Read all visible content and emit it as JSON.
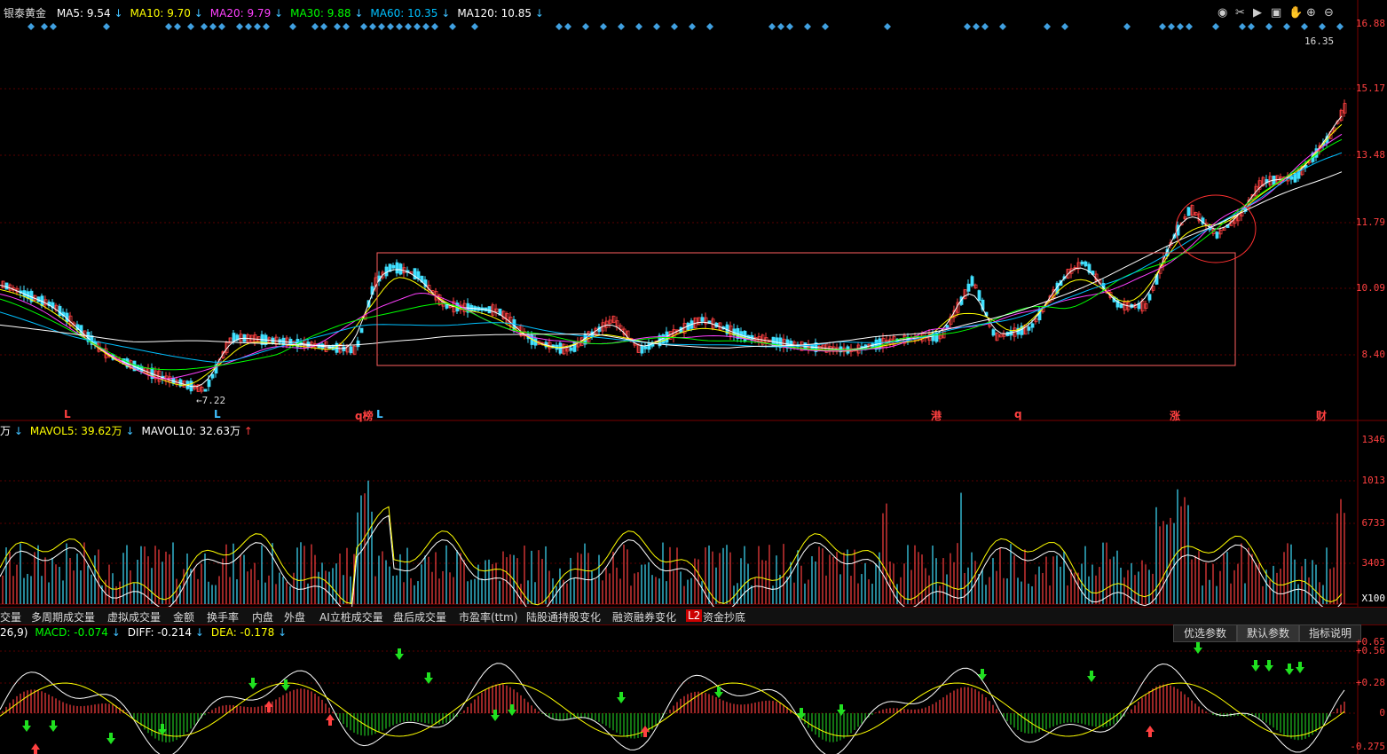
{
  "stock_name": "银泰黄金",
  "ma_legend": [
    {
      "label": "MA5: 9.54",
      "color": "#ffffff",
      "arrow": "down"
    },
    {
      "label": "MA10: 9.70",
      "color": "#ffff00",
      "arrow": "down"
    },
    {
      "label": "MA20: 9.79",
      "color": "#ff40ff",
      "arrow": "down"
    },
    {
      "label": "MA30: 9.88",
      "color": "#00ff00",
      "arrow": "down"
    },
    {
      "label": "MA60: 10.35",
      "color": "#00c0ff",
      "arrow": "down"
    },
    {
      "label": "MA120: 10.85",
      "color": "#ffffff",
      "arrow": "down"
    }
  ],
  "price_axis": [
    "16.88",
    "15.17",
    "13.48",
    "11.79",
    "10.09",
    "8.40"
  ],
  "price_high_label": "16.35",
  "price_low_label": "7.22",
  "event_markers": [
    {
      "text": "L",
      "color": "#ff4040"
    },
    {
      "text": "L",
      "color": "#40c0ff"
    },
    {
      "text": "q榜",
      "color": "#ff4040"
    },
    {
      "text": "L",
      "color": "#40c0ff"
    },
    {
      "text": "港",
      "color": "#ff4040"
    },
    {
      "text": "q",
      "color": "#ff4040"
    },
    {
      "text": "涨",
      "color": "#ff4040"
    },
    {
      "text": "财",
      "color": "#ff4040"
    }
  ],
  "volume_legend": [
    {
      "label": "万",
      "color": "#ffffff",
      "arrow": "down"
    },
    {
      "label": "MAVOL5: 39.62万",
      "color": "#ffff00",
      "arrow": "down"
    },
    {
      "label": "MAVOL10: 32.63万",
      "color": "#ffffff",
      "arrow": "up"
    }
  ],
  "volume_axis": [
    "1346",
    "1013",
    "6733",
    "3403",
    "X100"
  ],
  "indicator_tabs": [
    "交量",
    "多周期成交量",
    "虚拟成交量",
    "金额",
    "换手率",
    "内盘",
    "外盘",
    "AI立桩成交量",
    "盘后成交量",
    "市盈率(ttm)",
    "陆股通持股变化",
    "融资融券变化",
    "L2",
    "资金抄底"
  ],
  "macd_legend": [
    {
      "label": "26,9)",
      "color": "#ffffff",
      "arrow": ""
    },
    {
      "label": "MACD: -0.074",
      "color": "#00ff00",
      "arrow": "down"
    },
    {
      "label": "DIFF: -0.214",
      "color": "#ffffff",
      "arrow": "down"
    },
    {
      "label": "DEA: -0.178",
      "color": "#ffff00",
      "arrow": "down"
    }
  ],
  "macd_axis": [
    "+0.65",
    "+0.56",
    "+0.28",
    "0",
    "-0.275"
  ],
  "macd_buttons": [
    "优选参数",
    "默认参数",
    "指标说明"
  ],
  "toolbar_icons": [
    "eye-icon",
    "scissors-icon",
    "play-icon",
    "lock-icon",
    "hand-icon",
    "zoom-in-icon",
    "zoom-out-icon"
  ],
  "colors": {
    "up": "#ff4040",
    "down": "#40e0ff",
    "box": "#ff6060",
    "grid": "#5a0000"
  }
}
